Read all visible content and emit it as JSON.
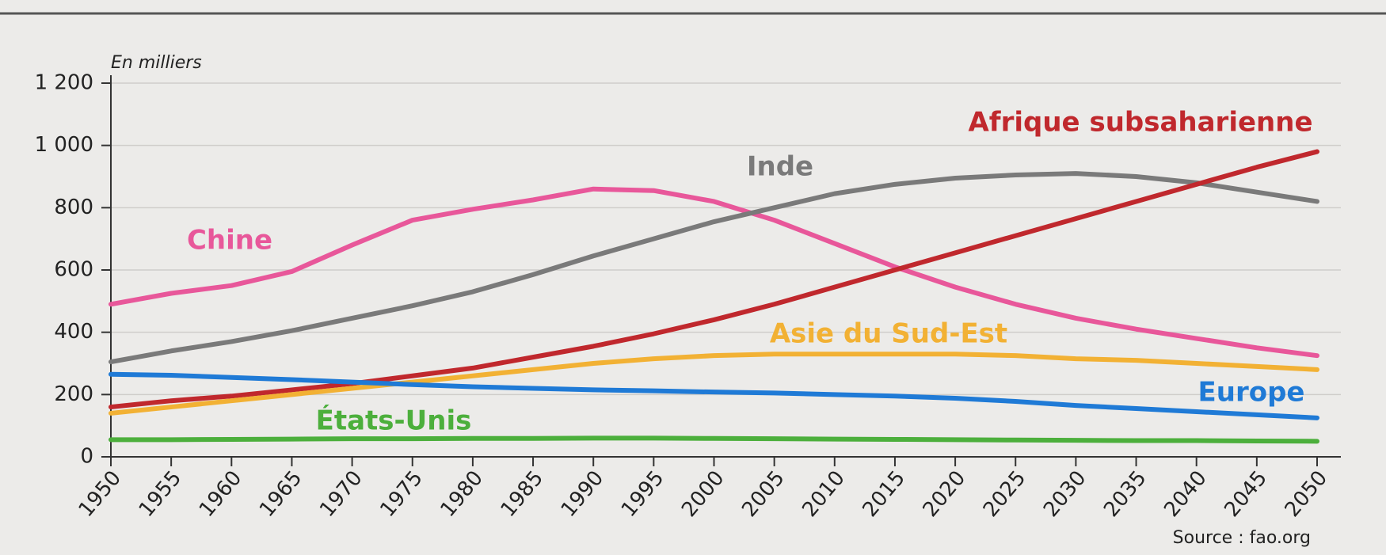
{
  "chart_data": {
    "type": "line",
    "y_label": "En milliers",
    "source": "Source : fao.org",
    "x": [
      1950,
      1955,
      1960,
      1965,
      1970,
      1975,
      1980,
      1985,
      1990,
      1995,
      2000,
      2005,
      2010,
      2015,
      2020,
      2025,
      2030,
      2035,
      2040,
      2045,
      2050
    ],
    "xlim": [
      1950,
      2050
    ],
    "xticks": [
      1950,
      1955,
      1960,
      1965,
      1970,
      1975,
      1980,
      1985,
      1990,
      1995,
      2000,
      2005,
      2010,
      2015,
      2020,
      2025,
      2030,
      2035,
      2040,
      2045,
      2050
    ],
    "ylim": [
      0,
      1200
    ],
    "yticks": [
      0,
      200,
      400,
      600,
      800,
      {
        "value": 1000,
        "label": "1 000"
      },
      {
        "value": 1200,
        "label": "1 200"
      }
    ],
    "grid": true,
    "series": [
      {
        "name": "Chine",
        "color": "#e8579a",
        "values": [
          490,
          525,
          550,
          595,
          680,
          760,
          795,
          825,
          860,
          855,
          820,
          760,
          685,
          610,
          545,
          490,
          445,
          410,
          380,
          350,
          325
        ]
      },
      {
        "name": "Inde",
        "color": "#7a7a7a",
        "values": [
          305,
          340,
          370,
          405,
          445,
          485,
          530,
          585,
          645,
          700,
          755,
          800,
          845,
          875,
          895,
          905,
          910,
          900,
          880,
          850,
          820
        ]
      },
      {
        "name": "Afrique subsaharienne",
        "color": "#c0282d",
        "values": [
          160,
          180,
          195,
          215,
          235,
          260,
          285,
          320,
          355,
          395,
          440,
          490,
          545,
          600,
          655,
          710,
          765,
          820,
          875,
          930,
          980
        ]
      },
      {
        "name": "Asie du Sud-Est",
        "color": "#f2b134",
        "values": [
          140,
          160,
          180,
          200,
          220,
          240,
          260,
          280,
          300,
          315,
          325,
          330,
          330,
          330,
          330,
          325,
          315,
          310,
          300,
          290,
          280
        ]
      },
      {
        "name": "Europe",
        "color": "#1f7ad6",
        "values": [
          265,
          262,
          255,
          248,
          240,
          232,
          225,
          220,
          215,
          212,
          208,
          205,
          200,
          195,
          188,
          178,
          165,
          155,
          145,
          135,
          125
        ]
      },
      {
        "name": "États-Unis",
        "color": "#4caf3c",
        "values": [
          55,
          55,
          56,
          57,
          58,
          58,
          59,
          59,
          60,
          60,
          59,
          58,
          57,
          56,
          55,
          54,
          53,
          52,
          52,
          51,
          50
        ]
      }
    ]
  }
}
